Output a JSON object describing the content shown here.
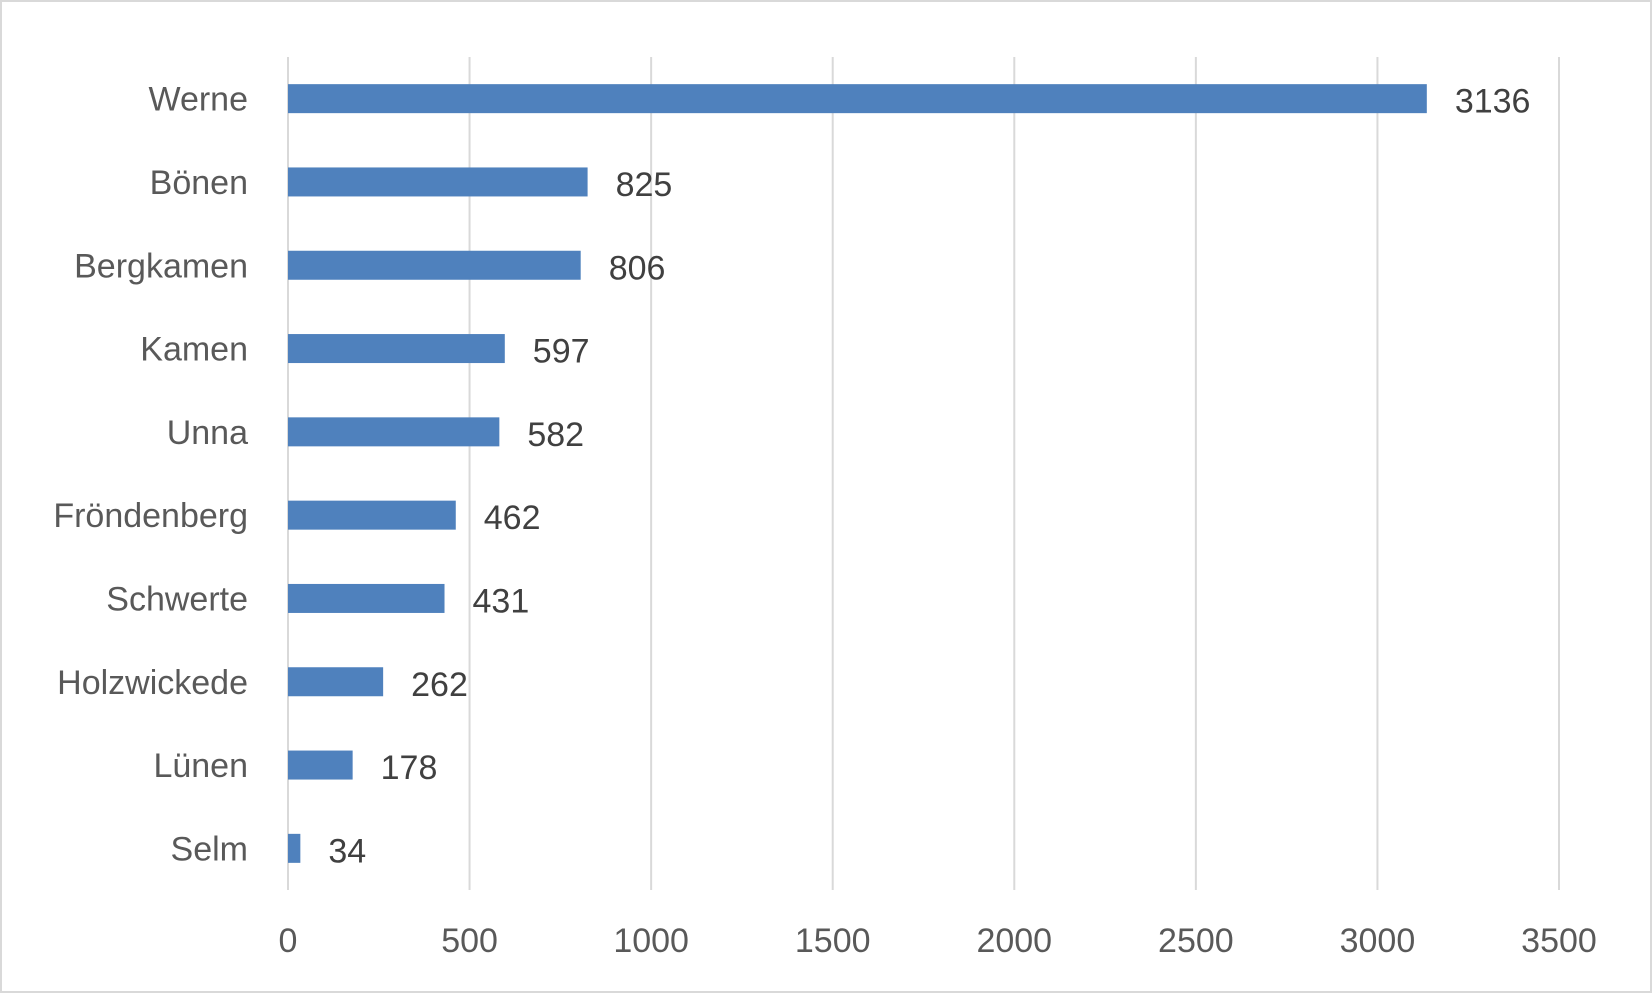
{
  "chart_data": {
    "type": "bar",
    "orientation": "horizontal",
    "title": "",
    "xlabel": "",
    "ylabel": "",
    "categories": [
      "Werne",
      "Bönen",
      "Bergkamen",
      "Kamen",
      "Unna",
      "Fröndenberg",
      "Schwerte",
      "Holzwickede",
      "Lünen",
      "Selm"
    ],
    "values": [
      3136,
      825,
      806,
      597,
      582,
      462,
      431,
      262,
      178,
      34
    ],
    "data_labels": [
      "3136",
      "825",
      "806",
      "597",
      "582",
      "462",
      "431",
      "262",
      "178",
      "34"
    ],
    "xlim": [
      0,
      3500
    ],
    "xticks": [
      0,
      500,
      1000,
      1500,
      2000,
      2500,
      3000,
      3500
    ],
    "xtick_labels": [
      "0",
      "500",
      "1000",
      "1500",
      "2000",
      "2500",
      "3000",
      "3500"
    ],
    "grid": "vertical",
    "legend": "none",
    "bar_color": "#4f81bd",
    "grid_color": "#d9d9d9",
    "text_color": "#595959",
    "data_label_color": "#404040",
    "border_color": "#d9d9d9"
  }
}
